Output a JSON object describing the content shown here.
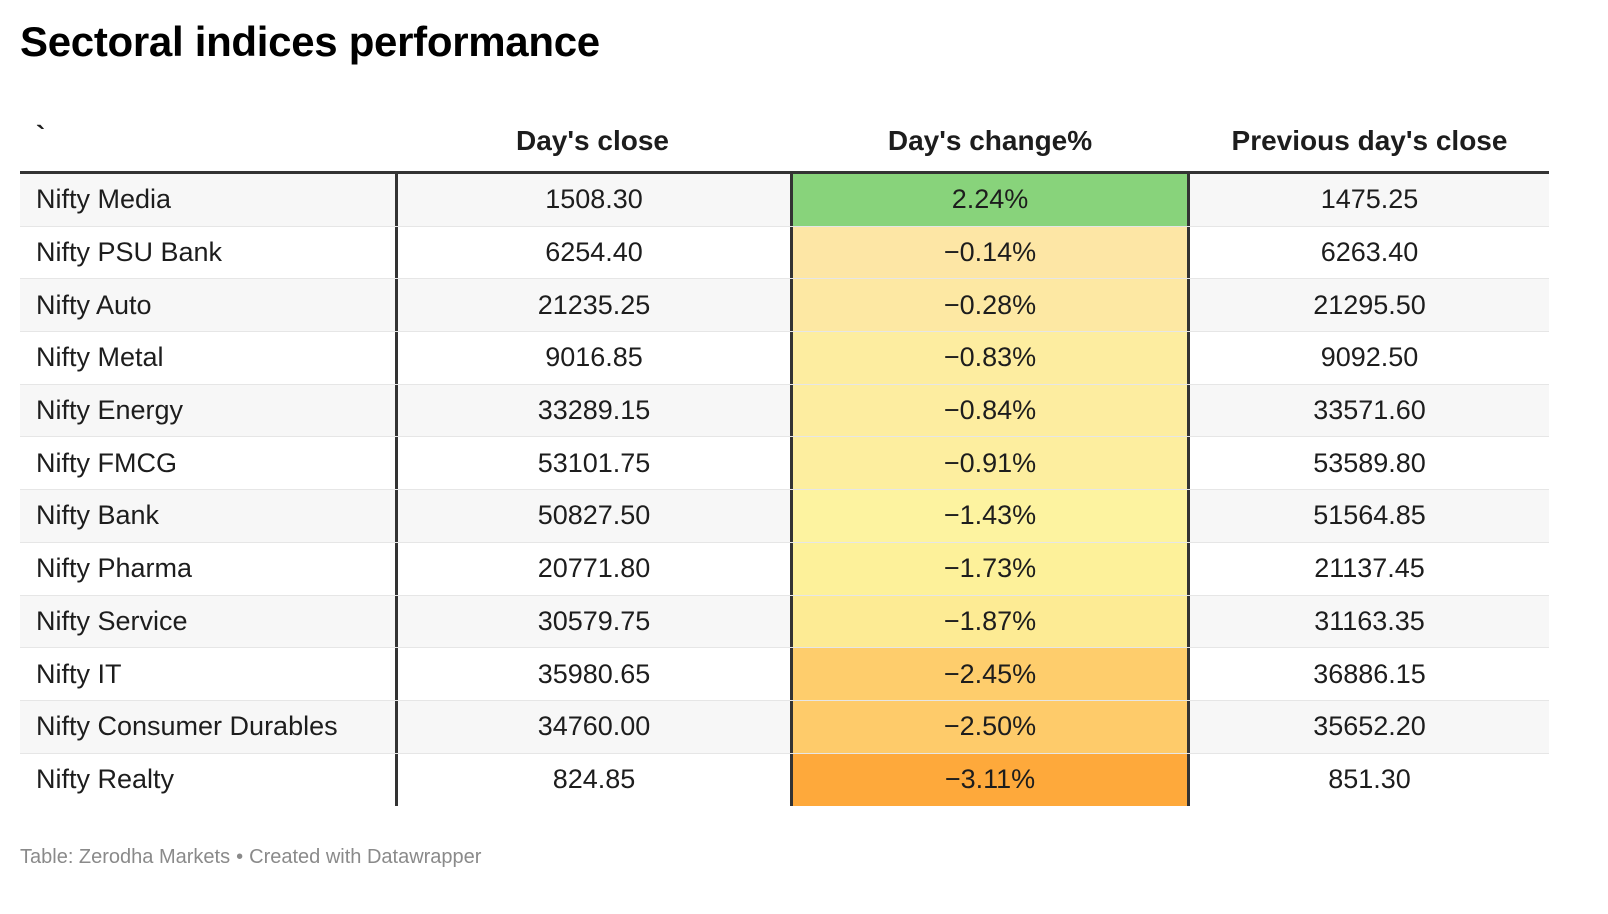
{
  "title": "Sectoral indices performance",
  "chart_data": {
    "type": "table",
    "title": "Sectoral indices performance",
    "columns": [
      "`",
      "Day's close",
      "Day's change%",
      "Previous day's close"
    ],
    "rows": [
      {
        "name": "Nifty Media",
        "close": "1508.30",
        "change": "2.24%",
        "change_value": 2.24,
        "prev_close": "1475.25",
        "color": "#88d37b"
      },
      {
        "name": "Nifty PSU Bank",
        "close": "6254.40",
        "change": "−0.14%",
        "change_value": -0.14,
        "prev_close": "6263.40",
        "color": "#fde6a5"
      },
      {
        "name": "Nifty Auto",
        "close": "21235.25",
        "change": "−0.28%",
        "change_value": -0.28,
        "prev_close": "21295.50",
        "color": "#fde8a3"
      },
      {
        "name": "Nifty Metal",
        "close": "9016.85",
        "change": "−0.83%",
        "change_value": -0.83,
        "prev_close": "9092.50",
        "color": "#fdeda0"
      },
      {
        "name": "Nifty Energy",
        "close": "33289.15",
        "change": "−0.84%",
        "change_value": -0.84,
        "prev_close": "33571.60",
        "color": "#fdeda0"
      },
      {
        "name": "Nifty FMCG",
        "close": "53101.75",
        "change": "−0.91%",
        "change_value": -0.91,
        "prev_close": "53589.80",
        "color": "#fdee9f"
      },
      {
        "name": "Nifty Bank",
        "close": "50827.50",
        "change": "−1.43%",
        "change_value": -1.43,
        "prev_close": "51564.85",
        "color": "#fdf3a0"
      },
      {
        "name": "Nifty Pharma",
        "close": "20771.80",
        "change": "−1.73%",
        "change_value": -1.73,
        "prev_close": "21137.45",
        "color": "#fdf19a"
      },
      {
        "name": "Nifty Service",
        "close": "30579.75",
        "change": "−1.87%",
        "change_value": -1.87,
        "prev_close": "31163.35",
        "color": "#fdeb94"
      },
      {
        "name": "Nifty IT",
        "close": "35980.65",
        "change": "−2.45%",
        "change_value": -2.45,
        "prev_close": "36886.15",
        "color": "#fecd6c"
      },
      {
        "name": "Nifty Consumer Durables",
        "close": "34760.00",
        "change": "−2.50%",
        "change_value": -2.5,
        "prev_close": "35652.20",
        "color": "#fecb6a"
      },
      {
        "name": "Nifty Realty",
        "close": "824.85",
        "change": "−3.11%",
        "change_value": -3.11,
        "prev_close": "851.30",
        "color": "#fea93b"
      }
    ]
  },
  "footer": {
    "source": "Table: Zerodha Markets",
    "separator": "•",
    "credit": "Created with Datawrapper"
  }
}
